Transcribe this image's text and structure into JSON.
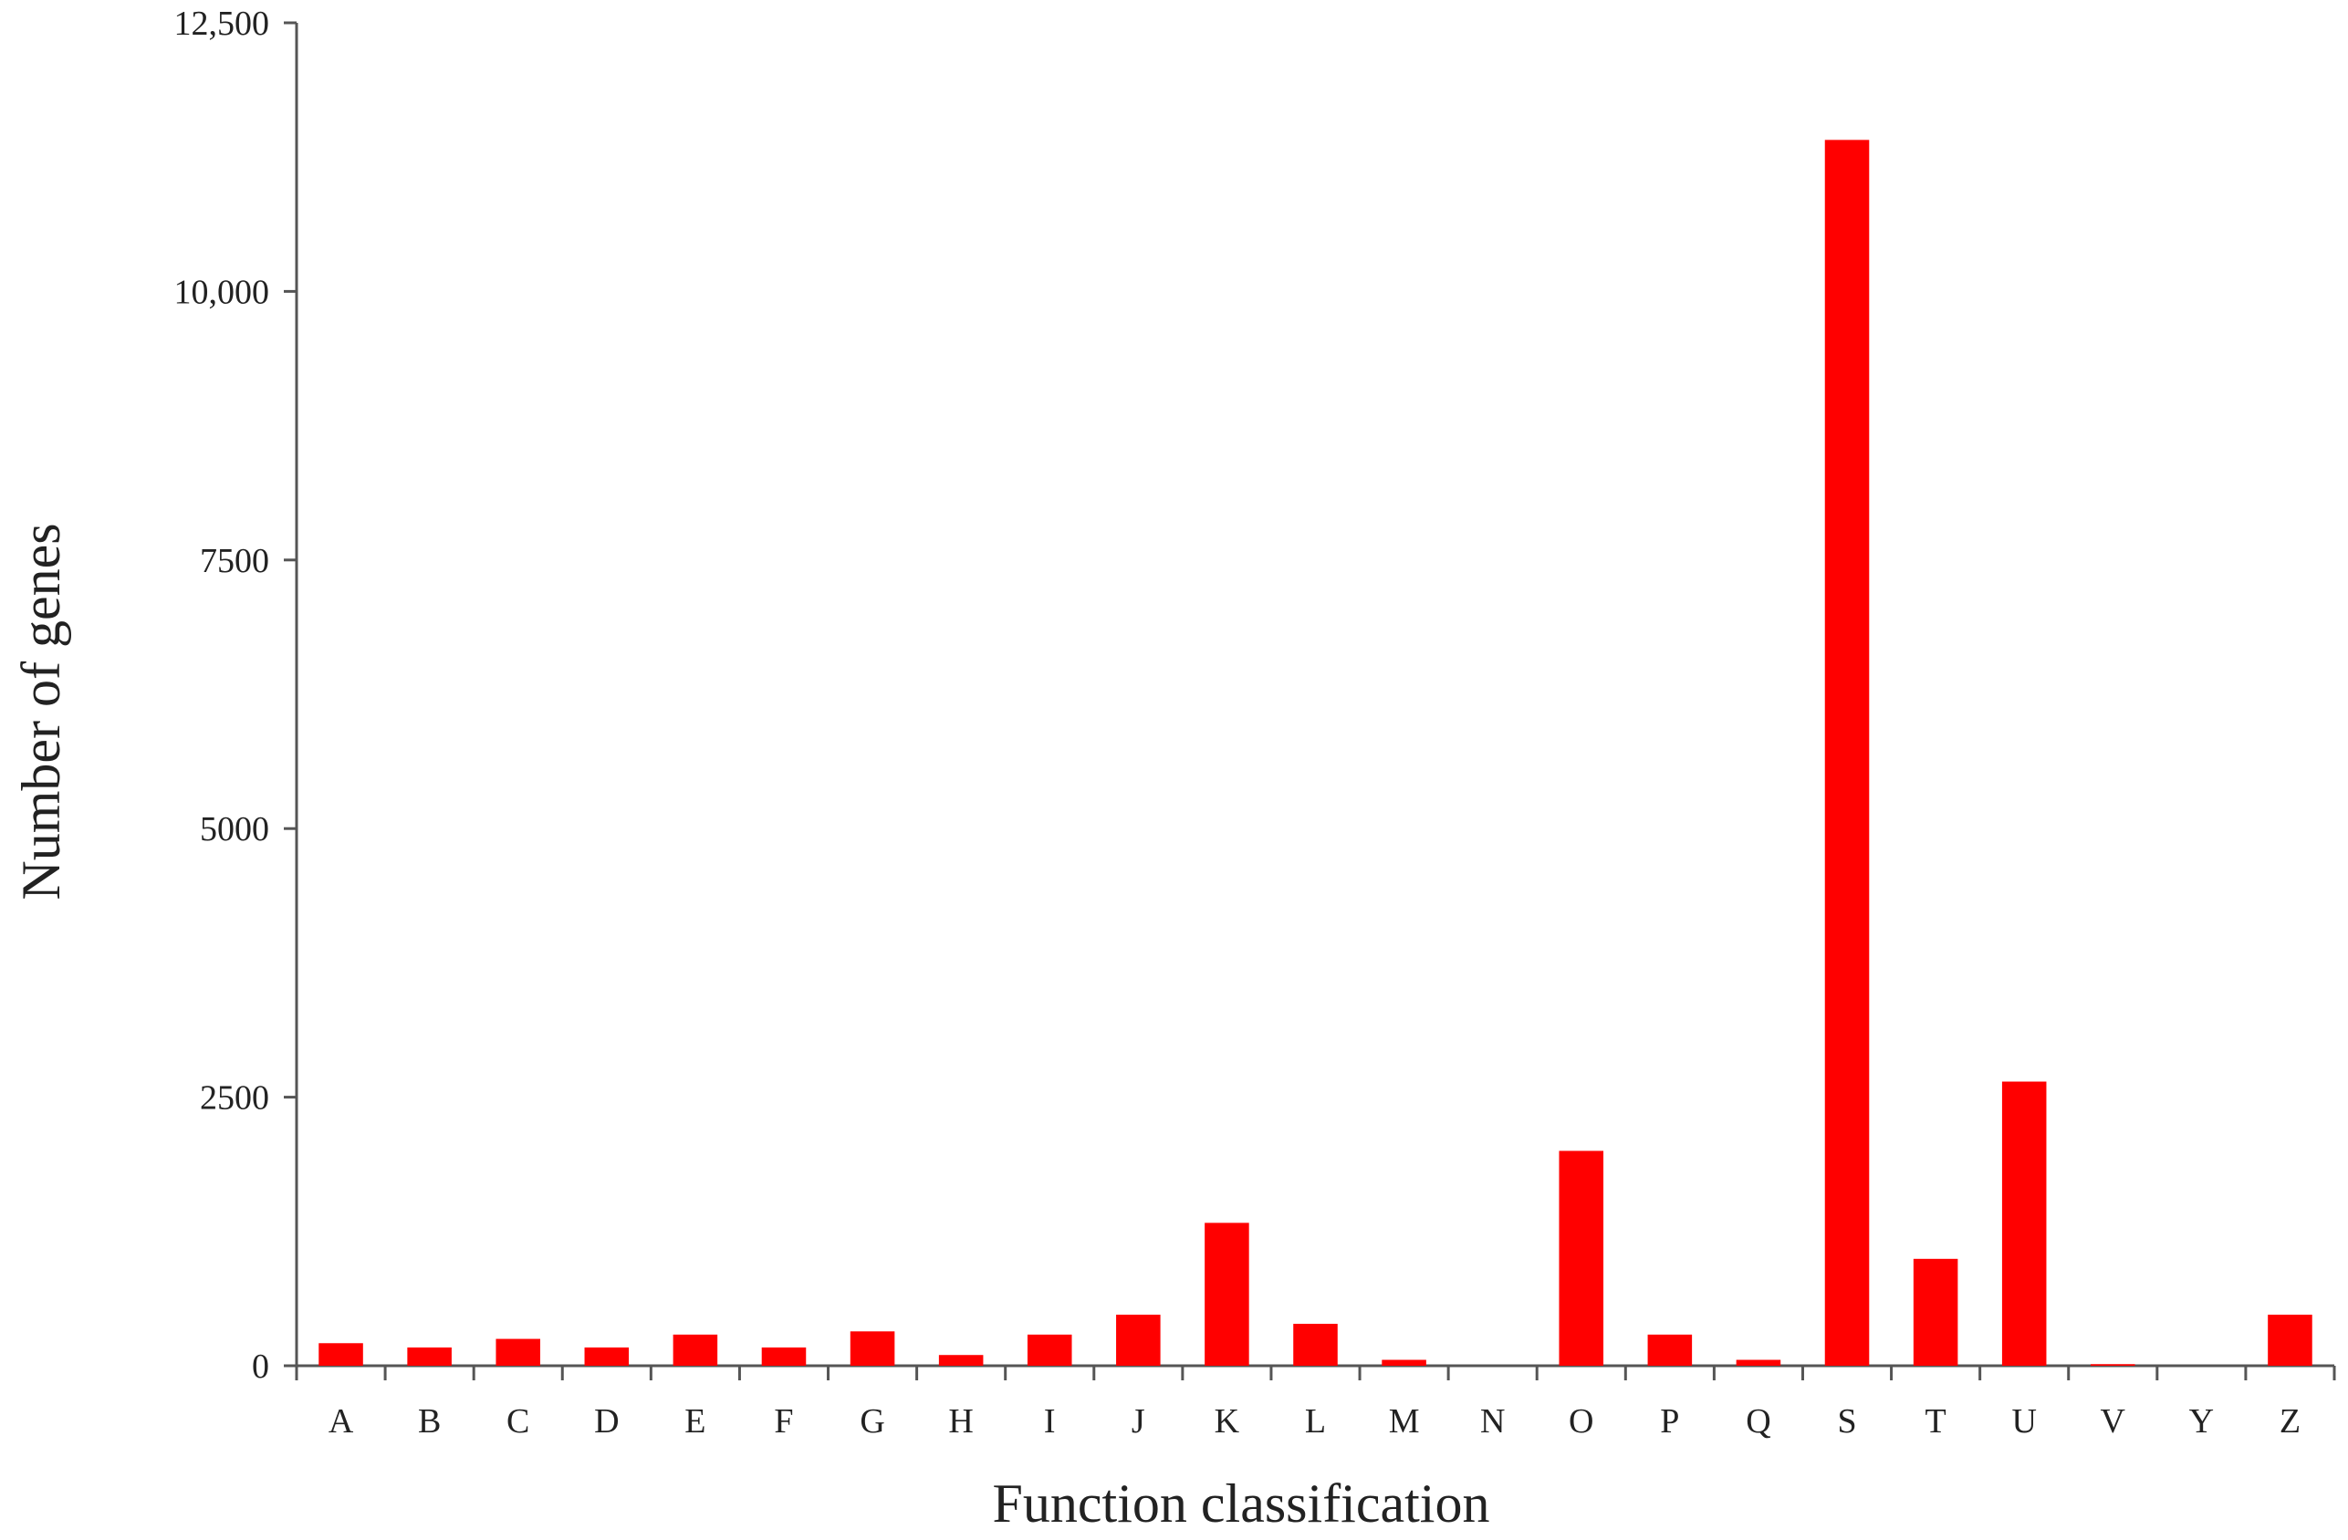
{
  "chart_data": {
    "type": "bar",
    "x_label": "Function classification",
    "y_label": "Number of genes",
    "categories": [
      "A",
      "B",
      "C",
      "D",
      "E",
      "F",
      "G",
      "H",
      "I",
      "J",
      "K",
      "L",
      "M",
      "N",
      "O",
      "P",
      "Q",
      "S",
      "T",
      "U",
      "V",
      "Y",
      "Z"
    ],
    "values": [
      210,
      170,
      250,
      170,
      290,
      170,
      320,
      100,
      290,
      475,
      1330,
      390,
      55,
      0,
      2000,
      290,
      55,
      11410,
      995,
      2645,
      15,
      0,
      475
    ],
    "color": "#ff0000",
    "ylim": [
      0,
      12500
    ],
    "yticks": [
      0,
      2500,
      5000,
      7500,
      {
        "value": 10000,
        "label": "10,000"
      },
      {
        "value": 12500,
        "label": "12,500"
      }
    ]
  }
}
